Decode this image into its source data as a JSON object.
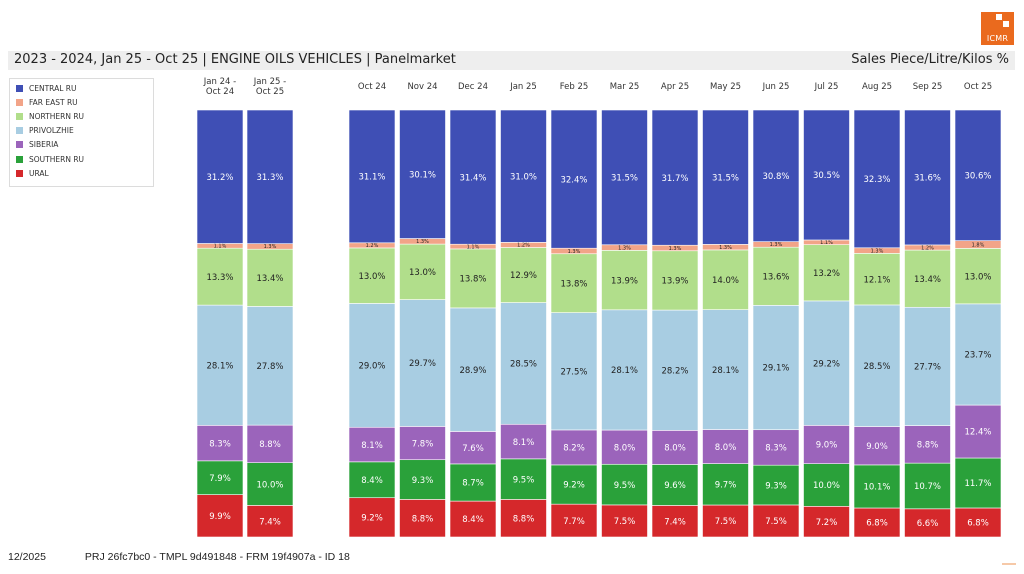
{
  "header": {
    "title": "2023 - 2024, Jan 25 - Oct 25 | ENGINE OILS VEHICLES | Panelmarket",
    "measure": "Sales Piece/Litre/Kilos %",
    "logo_text": "ICMR"
  },
  "footer": {
    "date": "12/2025",
    "reference": "PRJ 26fc7bc0 - TMPL 9d491848 - FRM 19f4907a - ID 18"
  },
  "colors": {
    "CENTRAL RU": "#3f4fb5",
    "FAR EAST RU": "#f2a488",
    "NORTHERN RU": "#b1de8b",
    "PRIVOLZHIE": "#a8cde2",
    "SIBERIA": "#9b64bb",
    "SOUTHERN RU": "#2aa13a",
    "URAL": "#d5282b"
  },
  "chart_data": {
    "type": "bar",
    "stacked": true,
    "normalized": true,
    "legend": "top-left",
    "categories": [
      "Jan 24 -\nOct 24",
      "Jan 25 -\nOct 25",
      "Oct 24",
      "Nov 24",
      "Dec 24",
      "Jan 25",
      "Feb 25",
      "Mar 25",
      "Apr 25",
      "May 25",
      "Jun 25",
      "Jul 25",
      "Aug 25",
      "Sep 25",
      "Oct 25"
    ],
    "series": [
      {
        "name": "URAL",
        "values": [
          9.9,
          7.4,
          9.2,
          8.8,
          8.4,
          8.8,
          7.7,
          7.5,
          7.4,
          7.5,
          7.5,
          7.2,
          6.8,
          6.6,
          6.8
        ]
      },
      {
        "name": "SOUTHERN RU",
        "values": [
          7.9,
          10.0,
          8.4,
          9.3,
          8.7,
          9.5,
          9.2,
          9.5,
          9.6,
          9.7,
          9.3,
          10.0,
          10.1,
          10.7,
          11.7
        ]
      },
      {
        "name": "SIBERIA",
        "values": [
          8.3,
          8.8,
          8.1,
          7.8,
          7.6,
          8.1,
          8.2,
          8.0,
          8.0,
          8.0,
          8.3,
          9.0,
          9.0,
          8.8,
          12.4
        ]
      },
      {
        "name": "PRIVOLZHIE",
        "values": [
          28.1,
          27.8,
          29.0,
          29.7,
          28.9,
          28.5,
          27.5,
          28.1,
          28.2,
          28.1,
          29.1,
          29.2,
          28.5,
          27.7,
          23.7
        ]
      },
      {
        "name": "NORTHERN RU",
        "values": [
          13.3,
          13.4,
          13.0,
          13.0,
          13.8,
          12.9,
          13.8,
          13.9,
          13.9,
          14.0,
          13.6,
          13.2,
          12.1,
          13.4,
          13.0
        ]
      },
      {
        "name": "FAR EAST RU",
        "values": [
          1.1,
          1.3,
          1.2,
          1.3,
          1.1,
          1.2,
          1.3,
          1.3,
          1.3,
          1.3,
          1.3,
          1.1,
          1.3,
          1.2,
          1.8
        ]
      },
      {
        "name": "CENTRAL RU",
        "values": [
          31.2,
          31.3,
          31.1,
          30.1,
          31.4,
          31.0,
          32.4,
          31.5,
          31.7,
          31.5,
          30.8,
          30.5,
          32.3,
          31.6,
          30.6
        ]
      }
    ],
    "legend_order": [
      "CENTRAL RU",
      "FAR EAST RU",
      "NORTHERN RU",
      "PRIVOLZHIE",
      "SIBERIA",
      "SOUTHERN RU",
      "URAL"
    ]
  }
}
